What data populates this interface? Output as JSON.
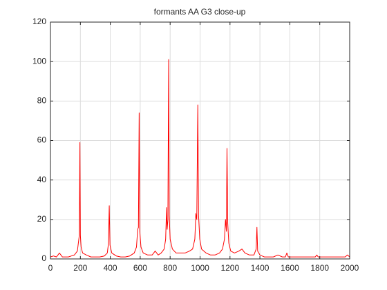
{
  "chart_data": {
    "type": "line",
    "title": "formants AA G3 close-up",
    "x": [
      0,
      20,
      40,
      60,
      80,
      100,
      120,
      140,
      160,
      180,
      188,
      193,
      197,
      200,
      205,
      215,
      240,
      270,
      300,
      330,
      360,
      380,
      388,
      393,
      398,
      410,
      440,
      470,
      500,
      530,
      560,
      575,
      583,
      588,
      593,
      597,
      605,
      620,
      650,
      680,
      700,
      720,
      740,
      760,
      770,
      776,
      780,
      785,
      790,
      794,
      800,
      815,
      840,
      870,
      900,
      930,
      950,
      965,
      972,
      978,
      985,
      990,
      998,
      1010,
      1040,
      1070,
      1100,
      1130,
      1150,
      1163,
      1170,
      1176,
      1180,
      1185,
      1192,
      1205,
      1230,
      1260,
      1280,
      1300,
      1330,
      1360,
      1375,
      1380,
      1385,
      1400,
      1430,
      1460,
      1490,
      1520,
      1550,
      1570,
      1580,
      1590,
      1620,
      1660,
      1700,
      1740,
      1770,
      1780,
      1790,
      1820,
      1860,
      1900,
      1940,
      1970,
      1985,
      2000
    ],
    "series": [
      {
        "color": "#ff0000",
        "values": [
          1,
          1.5,
          1,
          3,
          1,
          1,
          1,
          1.5,
          2,
          4,
          9,
          12,
          59,
          12,
          6,
          3,
          2,
          1,
          1,
          1,
          1.5,
          3,
          8,
          27,
          7,
          3,
          1.5,
          1,
          1,
          1.5,
          3,
          6,
          15,
          16,
          74,
          14,
          6,
          3,
          2,
          2,
          4,
          2,
          3,
          5,
          10,
          26,
          15,
          20,
          101,
          22,
          10,
          5,
          3,
          3,
          3,
          4,
          5,
          10,
          23,
          20,
          78,
          22,
          10,
          5,
          3,
          2,
          2,
          3,
          5,
          10,
          20,
          14,
          56,
          18,
          8,
          4,
          3,
          4,
          5,
          3,
          2,
          2,
          5,
          16,
          4,
          2,
          1,
          1,
          1,
          2,
          1,
          1,
          3,
          1,
          1,
          1,
          1,
          1,
          1,
          2,
          1,
          1,
          1,
          1,
          1,
          1,
          2,
          1
        ]
      }
    ],
    "xlim": [
      0,
      2000
    ],
    "xticks": [
      0,
      200,
      400,
      600,
      800,
      1000,
      1200,
      1400,
      1600,
      1800,
      2000
    ],
    "ylim": [
      0,
      120
    ],
    "yticks": [
      0,
      20,
      40,
      60,
      80,
      100,
      120
    ],
    "grid": true
  }
}
